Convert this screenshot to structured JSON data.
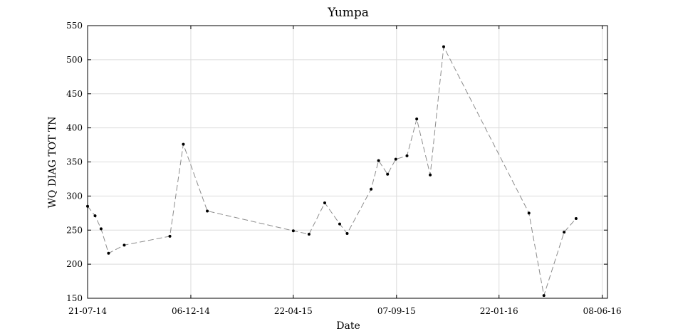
{
  "chart_data": {
    "type": "line",
    "title": "Yumpa",
    "xlabel": "Date",
    "ylabel": "WQ DIAG TOT TN",
    "x_axis": "date",
    "xlim": [
      "2014-07-21",
      "2016-06-15"
    ],
    "ylim": [
      150,
      550
    ],
    "yticks": [
      150,
      200,
      250,
      300,
      350,
      400,
      450,
      500,
      550
    ],
    "xticks": [
      {
        "date": "2014-07-21",
        "label": "21-07-14"
      },
      {
        "date": "2014-12-06",
        "label": "06-12-14"
      },
      {
        "date": "2015-04-22",
        "label": "22-04-15"
      },
      {
        "date": "2015-09-07",
        "label": "07-09-15"
      },
      {
        "date": "2016-01-22",
        "label": "22-01-16"
      },
      {
        "date": "2016-06-08",
        "label": "08-06-16"
      }
    ],
    "grid": true,
    "line_style": "dashed",
    "line_color": "#8c8c8c",
    "marker_color": "#000000",
    "series": [
      {
        "points": [
          {
            "x": "2014-07-21",
            "y": 285
          },
          {
            "x": "2014-07-31",
            "y": 271
          },
          {
            "x": "2014-08-08",
            "y": 252
          },
          {
            "x": "2014-08-18",
            "y": 216
          },
          {
            "x": "2014-09-08",
            "y": 228
          },
          {
            "x": "2014-11-08",
            "y": 241
          },
          {
            "x": "2014-11-26",
            "y": 376
          },
          {
            "x": "2014-12-28",
            "y": 278
          },
          {
            "x": "2015-04-22",
            "y": 249
          },
          {
            "x": "2015-05-13",
            "y": 244
          },
          {
            "x": "2015-06-03",
            "y": 290
          },
          {
            "x": "2015-06-23",
            "y": 259
          },
          {
            "x": "2015-07-03",
            "y": 245
          },
          {
            "x": "2015-08-04",
            "y": 310
          },
          {
            "x": "2015-08-14",
            "y": 352
          },
          {
            "x": "2015-08-26",
            "y": 332
          },
          {
            "x": "2015-09-06",
            "y": 354
          },
          {
            "x": "2015-09-21",
            "y": 359
          },
          {
            "x": "2015-10-04",
            "y": 413
          },
          {
            "x": "2015-10-22",
            "y": 331
          },
          {
            "x": "2015-11-09",
            "y": 519
          },
          {
            "x": "2016-03-02",
            "y": 275
          },
          {
            "x": "2016-03-22",
            "y": 154
          },
          {
            "x": "2016-04-18",
            "y": 247
          },
          {
            "x": "2016-05-04",
            "y": 267
          }
        ]
      }
    ]
  }
}
